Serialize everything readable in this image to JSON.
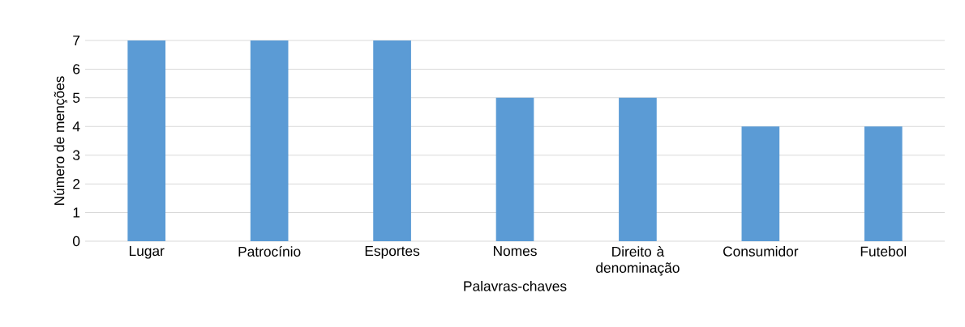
{
  "chart_data": {
    "type": "bar",
    "xlabel": "Palavras-chaves",
    "ylabel": "Número de menções",
    "categories": [
      "Lugar",
      "Patrocínio",
      "Esportes",
      "Nomes",
      "Direito à denominação",
      "Consumidor",
      "Futebol"
    ],
    "values": [
      7,
      7,
      7,
      5,
      5,
      4,
      4
    ],
    "color": "#5b9bd5",
    "ylim": [
      0,
      7
    ],
    "yticks": [
      0,
      1,
      2,
      3,
      4,
      5,
      6,
      7
    ],
    "grid": "y"
  }
}
